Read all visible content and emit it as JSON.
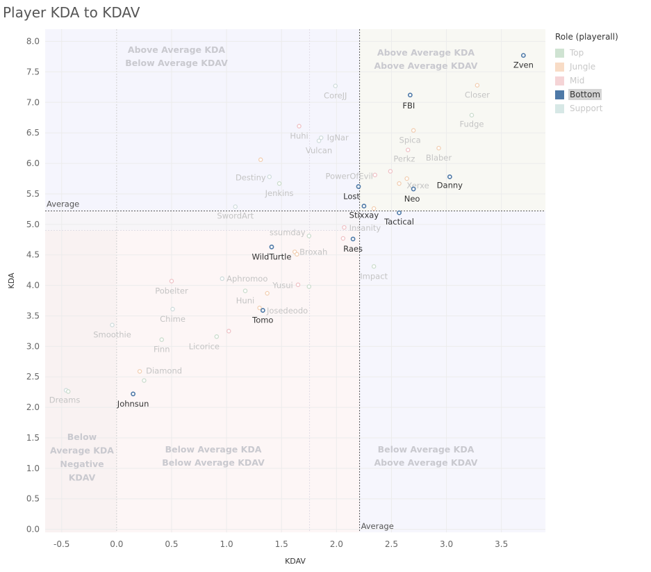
{
  "title": "Player KDA to KDAV",
  "legend": {
    "title": "Role (playerall)",
    "items": [
      {
        "label": "Top",
        "color": "#cfe3d2",
        "active": false
      },
      {
        "label": "Jungle",
        "color": "#f8dcc6",
        "active": false
      },
      {
        "label": "Mid",
        "color": "#f5d4d6",
        "active": false
      },
      {
        "label": "Bottom",
        "color": "#4e79a7",
        "active": true
      },
      {
        "label": "Support",
        "color": "#d7e8e6",
        "active": false
      }
    ]
  },
  "chart_data": {
    "type": "scatter",
    "xlabel": "KDAV",
    "ylabel": "KDA",
    "xlim": [
      -0.65,
      3.9
    ],
    "ylim": [
      -0.05,
      8.2
    ],
    "xticks": [
      "-0.5",
      "0.0",
      "0.5",
      "1.0",
      "1.5",
      "2.0",
      "2.5",
      "3.0",
      "3.5"
    ],
    "yticks": [
      "0.0",
      "0.5",
      "1.0",
      "1.5",
      "2.0",
      "2.5",
      "3.0",
      "3.5",
      "4.0",
      "4.5",
      "5.0",
      "5.5",
      "6.0",
      "6.5",
      "7.0",
      "7.5",
      "8.0"
    ],
    "averages": {
      "kda": 5.22,
      "kdav": 2.21,
      "kda_label": "Average",
      "kdav_label": "Average"
    },
    "quadrant_labels": {
      "top_left": [
        "Above Average KDA",
        "Below Average KDAV"
      ],
      "top_right": [
        "Above Average KDA",
        "Above Average KDAV"
      ],
      "bottom_left": [
        "Below Average KDA",
        "Below Average KDAV"
      ],
      "bottom_right": [
        "Below Average KDA",
        "Above Average KDAV"
      ],
      "negative": [
        "Below",
        "Average KDA",
        "Negative",
        "KDAV"
      ]
    },
    "points": [
      {
        "name": "Zven",
        "role": "Bottom",
        "x": 3.7,
        "y": 7.77
      },
      {
        "name": "FBI",
        "role": "Bottom",
        "x": 2.67,
        "y": 7.12
      },
      {
        "name": "Danny",
        "role": "Bottom",
        "x": 3.03,
        "y": 5.78
      },
      {
        "name": "Lost",
        "role": "Bottom",
        "x": 2.2,
        "y": 5.62
      },
      {
        "name": "Neo",
        "role": "Bottom",
        "x": 2.7,
        "y": 5.58
      },
      {
        "name": "Stixxay",
        "role": "Bottom",
        "x": 2.25,
        "y": 5.3
      },
      {
        "name": "Tactical",
        "role": "Bottom",
        "x": 2.57,
        "y": 5.19
      },
      {
        "name": "Raes",
        "role": "Bottom",
        "x": 2.15,
        "y": 4.76
      },
      {
        "name": "WildTurtle",
        "role": "Bottom",
        "x": 1.41,
        "y": 4.63
      },
      {
        "name": "Tomo",
        "role": "Bottom",
        "x": 1.33,
        "y": 3.59
      },
      {
        "name": "Johnsun",
        "role": "Bottom",
        "x": 0.15,
        "y": 2.22
      },
      {
        "name": "Closer",
        "role": "Jungle",
        "x": 3.28,
        "y": 7.28
      },
      {
        "name": "CoreJJ",
        "role": "Support",
        "x": 1.99,
        "y": 7.27
      },
      {
        "name": "Fudge",
        "role": "Top",
        "x": 3.23,
        "y": 6.79
      },
      {
        "name": "Huhi",
        "role": "Mid",
        "x": 1.66,
        "y": 6.61
      },
      {
        "name": "Spica",
        "role": "Jungle",
        "x": 2.7,
        "y": 6.54
      },
      {
        "name": "IgNar",
        "role": "Support",
        "x": 1.86,
        "y": 6.42
      },
      {
        "name": "Vulcan",
        "role": "Support",
        "x": 1.84,
        "y": 6.37
      },
      {
        "name": "Blaber",
        "role": "Jungle",
        "x": 2.93,
        "y": 6.25
      },
      {
        "name": "",
        "role": "Mid",
        "x": 2.65,
        "y": 6.22
      },
      {
        "name": "",
        "role": "Jungle",
        "x": 1.31,
        "y": 6.06
      },
      {
        "name": "Perkz",
        "role": "Mid",
        "x": 2.49,
        "y": 5.87
      },
      {
        "name": "PowerOfEvil",
        "role": "Mid",
        "x": 2.35,
        "y": 5.81
      },
      {
        "name": "Destiny",
        "role": "Support",
        "x": 1.39,
        "y": 5.78
      },
      {
        "name": "",
        "role": "Jungle",
        "x": 2.64,
        "y": 5.75
      },
      {
        "name": "Xerxe",
        "role": "Jungle",
        "x": 2.57,
        "y": 5.67
      },
      {
        "name": "Jenkins",
        "role": "Top",
        "x": 1.48,
        "y": 5.67
      },
      {
        "name": "SwordArt",
        "role": "Support",
        "x": 1.08,
        "y": 5.29
      },
      {
        "name": "",
        "role": "Jungle",
        "x": 2.34,
        "y": 5.26
      },
      {
        "name": "Insanity",
        "role": "Mid",
        "x": 2.07,
        "y": 4.95
      },
      {
        "name": "ssumday",
        "role": "Top",
        "x": 1.75,
        "y": 4.81
      },
      {
        "name": "",
        "role": "Mid",
        "x": 2.06,
        "y": 4.77
      },
      {
        "name": "Broxah",
        "role": "Jungle",
        "x": 1.62,
        "y": 4.55
      },
      {
        "name": "",
        "role": "Jungle",
        "x": 1.64,
        "y": 4.51
      },
      {
        "name": "Impact",
        "role": "Top",
        "x": 2.34,
        "y": 4.31
      },
      {
        "name": "Aphromoo",
        "role": "Support",
        "x": 0.96,
        "y": 4.11
      },
      {
        "name": "Pobelter",
        "role": "Mid",
        "x": 0.5,
        "y": 4.07
      },
      {
        "name": "Yusui",
        "role": "Mid",
        "x": 1.65,
        "y": 4.01
      },
      {
        "name": "",
        "role": "Top",
        "x": 1.75,
        "y": 3.98
      },
      {
        "name": "Huni",
        "role": "Top",
        "x": 1.17,
        "y": 3.91
      },
      {
        "name": "",
        "role": "Jungle",
        "x": 1.37,
        "y": 3.87
      },
      {
        "name": "Josedeodo",
        "role": "Jungle",
        "x": 1.3,
        "y": 3.63
      },
      {
        "name": "Chime",
        "role": "Support",
        "x": 0.51,
        "y": 3.61
      },
      {
        "name": "Smoothie",
        "role": "Support",
        "x": -0.04,
        "y": 3.35
      },
      {
        "name": "",
        "role": "Mid",
        "x": 1.02,
        "y": 3.25
      },
      {
        "name": "Licorice",
        "role": "Top",
        "x": 0.91,
        "y": 3.16
      },
      {
        "name": "Finn",
        "role": "Top",
        "x": 0.41,
        "y": 3.11
      },
      {
        "name": "Diamond",
        "role": "Jungle",
        "x": 0.21,
        "y": 2.59
      },
      {
        "name": "",
        "role": "Top",
        "x": 0.25,
        "y": 2.44
      },
      {
        "name": "Dreams",
        "role": "Support",
        "x": -0.46,
        "y": 2.28
      },
      {
        "name": "",
        "role": "Top",
        "x": -0.44,
        "y": 2.26
      }
    ]
  }
}
